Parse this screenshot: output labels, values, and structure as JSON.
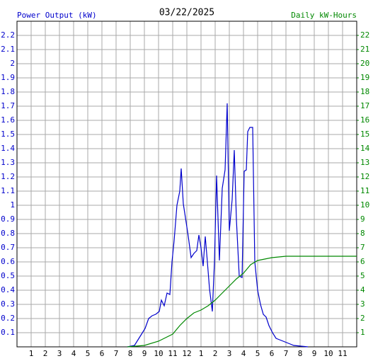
{
  "chart_data": {
    "type": "line",
    "title": "03/22/2025",
    "y_label": "Power Output (kW)",
    "y2_label": "Daily kW-Hours",
    "grid": true,
    "xlim": [
      0,
      24
    ],
    "xticks": [
      1,
      2,
      3,
      4,
      5,
      6,
      7,
      8,
      9,
      10,
      11,
      12,
      {
        "value": 13,
        "label": "1"
      },
      {
        "value": 14,
        "label": "2"
      },
      {
        "value": 15,
        "label": "3"
      },
      {
        "value": 16,
        "label": "4"
      },
      {
        "value": 17,
        "label": "5"
      },
      {
        "value": 18,
        "label": "6"
      },
      {
        "value": 19,
        "label": "7"
      },
      {
        "value": 20,
        "label": "8"
      },
      {
        "value": 21,
        "label": "9"
      },
      {
        "value": 22,
        "label": "10"
      },
      {
        "value": 23,
        "label": "11"
      }
    ],
    "ylim": [
      0,
      2.3
    ],
    "yticks": [
      0.1,
      0.2,
      0.3,
      0.4,
      0.5,
      0.6,
      0.7,
      0.8,
      0.9,
      1.0,
      1.1,
      1.2,
      1.3,
      1.4,
      1.5,
      1.6,
      1.7,
      1.8,
      1.9,
      2.0,
      2.1,
      2.2
    ],
    "y2lim": [
      0,
      23
    ],
    "y2ticks": [
      1,
      2,
      3,
      4,
      5,
      6,
      7,
      8,
      9,
      10,
      11,
      12,
      13,
      14,
      15,
      16,
      17,
      18,
      19,
      20,
      21,
      22
    ],
    "series": [
      {
        "color": "#0000cc",
        "x": [
          7.8,
          8.3,
          8.55,
          8.8,
          9.05,
          9.3,
          9.55,
          9.8,
          10.05,
          10.2,
          10.4,
          10.6,
          10.8,
          10.95,
          11.1,
          11.3,
          11.5,
          11.6,
          11.75,
          11.95,
          12.1,
          12.3,
          12.5,
          12.7,
          12.85,
          13.0,
          13.15,
          13.3,
          13.45,
          13.6,
          13.8,
          13.95,
          14.1,
          14.3,
          14.5,
          14.7,
          14.85,
          15.0,
          15.2,
          15.35,
          15.5,
          15.7,
          15.9,
          16.05,
          16.2,
          16.3,
          16.45,
          16.65,
          16.8,
          17.0,
          17.2,
          17.4,
          17.6,
          17.8,
          18.05,
          18.3,
          18.55,
          18.8,
          19.05,
          19.3,
          19.55,
          20.55
        ],
        "values": [
          0,
          0.01,
          0.05,
          0.09,
          0.13,
          0.2,
          0.22,
          0.23,
          0.25,
          0.33,
          0.29,
          0.38,
          0.37,
          0.6,
          0.75,
          1.0,
          1.1,
          1.26,
          1.01,
          0.88,
          0.78,
          0.63,
          0.66,
          0.68,
          0.79,
          0.7,
          0.57,
          0.78,
          0.6,
          0.41,
          0.25,
          0.6,
          1.21,
          0.61,
          1.12,
          1.25,
          1.72,
          0.82,
          1.04,
          1.39,
          0.9,
          0.5,
          0.49,
          1.24,
          1.25,
          1.52,
          1.55,
          1.55,
          0.6,
          0.4,
          0.3,
          0.23,
          0.21,
          0.15,
          0.1,
          0.06,
          0.05,
          0.04,
          0.03,
          0.02,
          0.01,
          0
        ]
      },
      {
        "color": "#008800",
        "axis": "y2",
        "x": [
          7.8,
          9,
          10,
          11,
          11.5,
          12,
          12.5,
          13,
          13.5,
          14,
          14.5,
          15,
          15.5,
          16,
          16.5,
          17,
          17.5,
          18,
          19,
          24
        ],
        "values": [
          0,
          0.1,
          0.4,
          0.9,
          1.5,
          2.0,
          2.4,
          2.6,
          2.9,
          3.3,
          3.8,
          4.3,
          4.8,
          5.2,
          5.8,
          6.1,
          6.2,
          6.3,
          6.4,
          6.4
        ]
      }
    ]
  }
}
